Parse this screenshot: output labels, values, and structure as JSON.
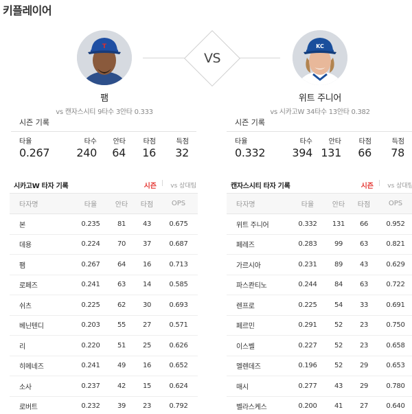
{
  "page_title": "키플레이어",
  "vs_label": "VS",
  "players": [
    {
      "name": "팸",
      "sub": "vs 캔자스시티  9타수 3안타 0.333",
      "cap_letter": "T",
      "cap_color": "#1f4fa3",
      "skin_color": "#8a5a3c",
      "season_title": "시즌 기록",
      "season": [
        {
          "label": "타율",
          "value": "0.267"
        },
        {
          "label": "타수",
          "value": "240"
        },
        {
          "label": "안타",
          "value": "64"
        },
        {
          "label": "타점",
          "value": "16"
        },
        {
          "label": "득점",
          "value": "32"
        }
      ]
    },
    {
      "name": "위트 주니어",
      "sub": "vs 시카고W  34타수 13안타 0.382",
      "cap_letter": "KC",
      "cap_color": "#1a4f9c",
      "skin_color": "#e8b89a",
      "season_title": "시즌 기록",
      "season": [
        {
          "label": "타율",
          "value": "0.332"
        },
        {
          "label": "타수",
          "value": "394"
        },
        {
          "label": "안타",
          "value": "131"
        },
        {
          "label": "타점",
          "value": "66"
        },
        {
          "label": "득점",
          "value": "78"
        }
      ]
    }
  ],
  "tables": [
    {
      "title": "시카고W 타자 기록",
      "tab_active": "시즌",
      "tab_sep": "|",
      "tab_other": "vs 상대팀",
      "headers": [
        "타자명",
        "타율",
        "안타",
        "타점",
        "OPS"
      ],
      "rows": [
        [
          "본",
          "0.235",
          "81",
          "43",
          "0.675"
        ],
        [
          "데용",
          "0.224",
          "70",
          "37",
          "0.687"
        ],
        [
          "팸",
          "0.267",
          "64",
          "16",
          "0.713"
        ],
        [
          "로페즈",
          "0.241",
          "63",
          "14",
          "0.585"
        ],
        [
          "쉬츠",
          "0.225",
          "62",
          "30",
          "0.693"
        ],
        [
          "베닌텐디",
          "0.203",
          "55",
          "27",
          "0.571"
        ],
        [
          "리",
          "0.220",
          "51",
          "25",
          "0.626"
        ],
        [
          "히메네즈",
          "0.241",
          "49",
          "16",
          "0.652"
        ],
        [
          "소사",
          "0.237",
          "42",
          "15",
          "0.624"
        ],
        [
          "로버트",
          "0.232",
          "39",
          "23",
          "0.792"
        ]
      ]
    },
    {
      "title": "캔자스시티 타자 기록",
      "tab_active": "시즌",
      "tab_sep": "|",
      "tab_other": "vs 상대팀",
      "headers": [
        "타자명",
        "타율",
        "안타",
        "타점",
        "OPS"
      ],
      "rows": [
        [
          "위트 주니어",
          "0.332",
          "131",
          "66",
          "0.952"
        ],
        [
          "페레즈",
          "0.283",
          "99",
          "63",
          "0.821"
        ],
        [
          "가르시아",
          "0.231",
          "89",
          "43",
          "0.629"
        ],
        [
          "파스콴티노",
          "0.244",
          "84",
          "63",
          "0.722"
        ],
        [
          "렌프로",
          "0.225",
          "54",
          "33",
          "0.691"
        ],
        [
          "페르민",
          "0.291",
          "52",
          "23",
          "0.750"
        ],
        [
          "이스벨",
          "0.227",
          "52",
          "23",
          "0.658"
        ],
        [
          "멜렌데즈",
          "0.196",
          "52",
          "29",
          "0.653"
        ],
        [
          "매시",
          "0.277",
          "43",
          "29",
          "0.780"
        ],
        [
          "벨라스케스",
          "0.200",
          "41",
          "27",
          "0.640"
        ]
      ]
    }
  ]
}
